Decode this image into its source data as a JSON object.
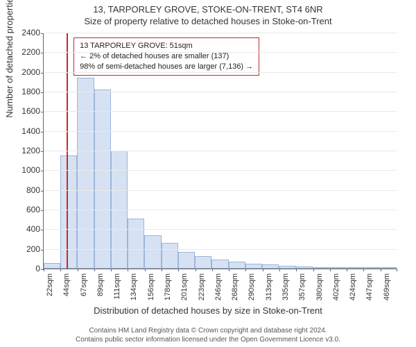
{
  "title_main": "13, TARPORLEY GROVE, STOKE-ON-TRENT, ST4 6NR",
  "title_sub": "Size of property relative to detached houses in Stoke-on-Trent",
  "ylabel": "Number of detached properties",
  "xlabel": "Distribution of detached houses by size in Stoke-on-Trent",
  "footer_line1": "Contains HM Land Registry data © Crown copyright and database right 2024.",
  "footer_line2": "Contains public sector information licensed under the Open Government Licence v3.0.",
  "chart": {
    "type": "histogram",
    "ylim": [
      0,
      2400
    ],
    "ytick_step": 200,
    "x_ticks": [
      22,
      44,
      67,
      89,
      111,
      134,
      156,
      178,
      201,
      223,
      246,
      268,
      290,
      313,
      335,
      357,
      380,
      402,
      424,
      447,
      469
    ],
    "x_unit": "sqm",
    "values": [
      60,
      1150,
      1940,
      1820,
      1200,
      510,
      340,
      260,
      170,
      130,
      90,
      70,
      50,
      40,
      30,
      20,
      15,
      10,
      10,
      10,
      10
    ],
    "bar_fill": "#d6e2f3",
    "bar_border": "#9cb4d9",
    "grid_color": "#e9e9e9",
    "axis_color": "#666666",
    "background": "#ffffff",
    "marker": {
      "value_sqm": 51,
      "color": "#c62828",
      "callout_lines": [
        "13 TARPORLEY GROVE: 51sqm",
        "← 2% of detached houses are smaller (137)",
        "98% of semi-detached houses are larger (7,136) →"
      ]
    }
  }
}
